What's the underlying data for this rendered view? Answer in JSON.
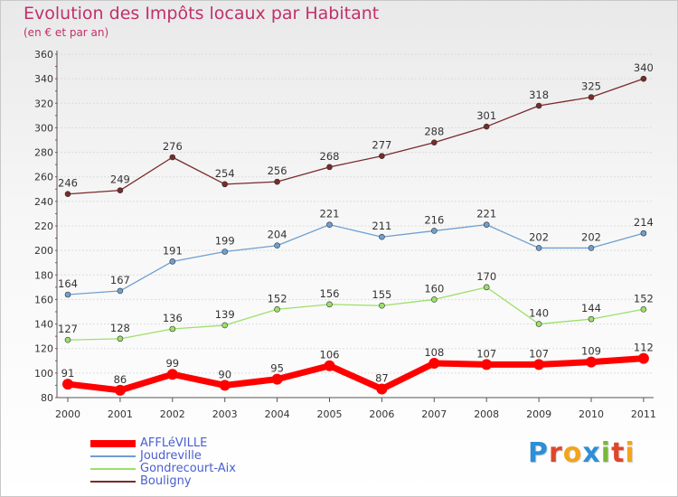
{
  "title": "Evolution des Impôts locaux par Habitant",
  "subtitle": "(en € et par an)",
  "logo": {
    "text": "Proxiti",
    "colors": [
      "#2e8fd6",
      "#e0462a",
      "#f2a51a",
      "#2e8fd6",
      "#7ab83b",
      "#e0462a",
      "#f2a51a"
    ]
  },
  "chart_data": {
    "type": "line",
    "title": "Evolution des Impôts locaux par Habitant",
    "subtitle": "(en € et par an)",
    "xlabel": "",
    "ylabel": "",
    "x": [
      "2000",
      "2001",
      "2002",
      "2003",
      "2004",
      "2005",
      "2006",
      "2007",
      "2008",
      "2009",
      "2010",
      "2011"
    ],
    "ylim": [
      80,
      360
    ],
    "yticks": [
      80,
      100,
      120,
      140,
      160,
      180,
      200,
      220,
      240,
      260,
      280,
      300,
      320,
      340,
      360
    ],
    "grid": "horizontal",
    "legend": "bottom-left",
    "series": [
      {
        "name": "Bouligny",
        "color": "#7a2a2a",
        "values": [
          246,
          249,
          276,
          254,
          256,
          268,
          277,
          288,
          301,
          318,
          325,
          340
        ]
      },
      {
        "name": "Joudreville",
        "color": "#6f9fd0",
        "values": [
          164,
          167,
          191,
          199,
          204,
          221,
          211,
          216,
          221,
          202,
          202,
          214
        ]
      },
      {
        "name": "Gondrecourt-Aix",
        "color": "#9ce06a",
        "values": [
          127,
          128,
          136,
          139,
          152,
          156,
          155,
          160,
          170,
          140,
          144,
          152
        ]
      },
      {
        "name": "AFFLéVILLE",
        "color": "#ff0000",
        "values": [
          91,
          86,
          99,
          90,
          95,
          106,
          87,
          108,
          107,
          107,
          109,
          112
        ]
      }
    ]
  }
}
